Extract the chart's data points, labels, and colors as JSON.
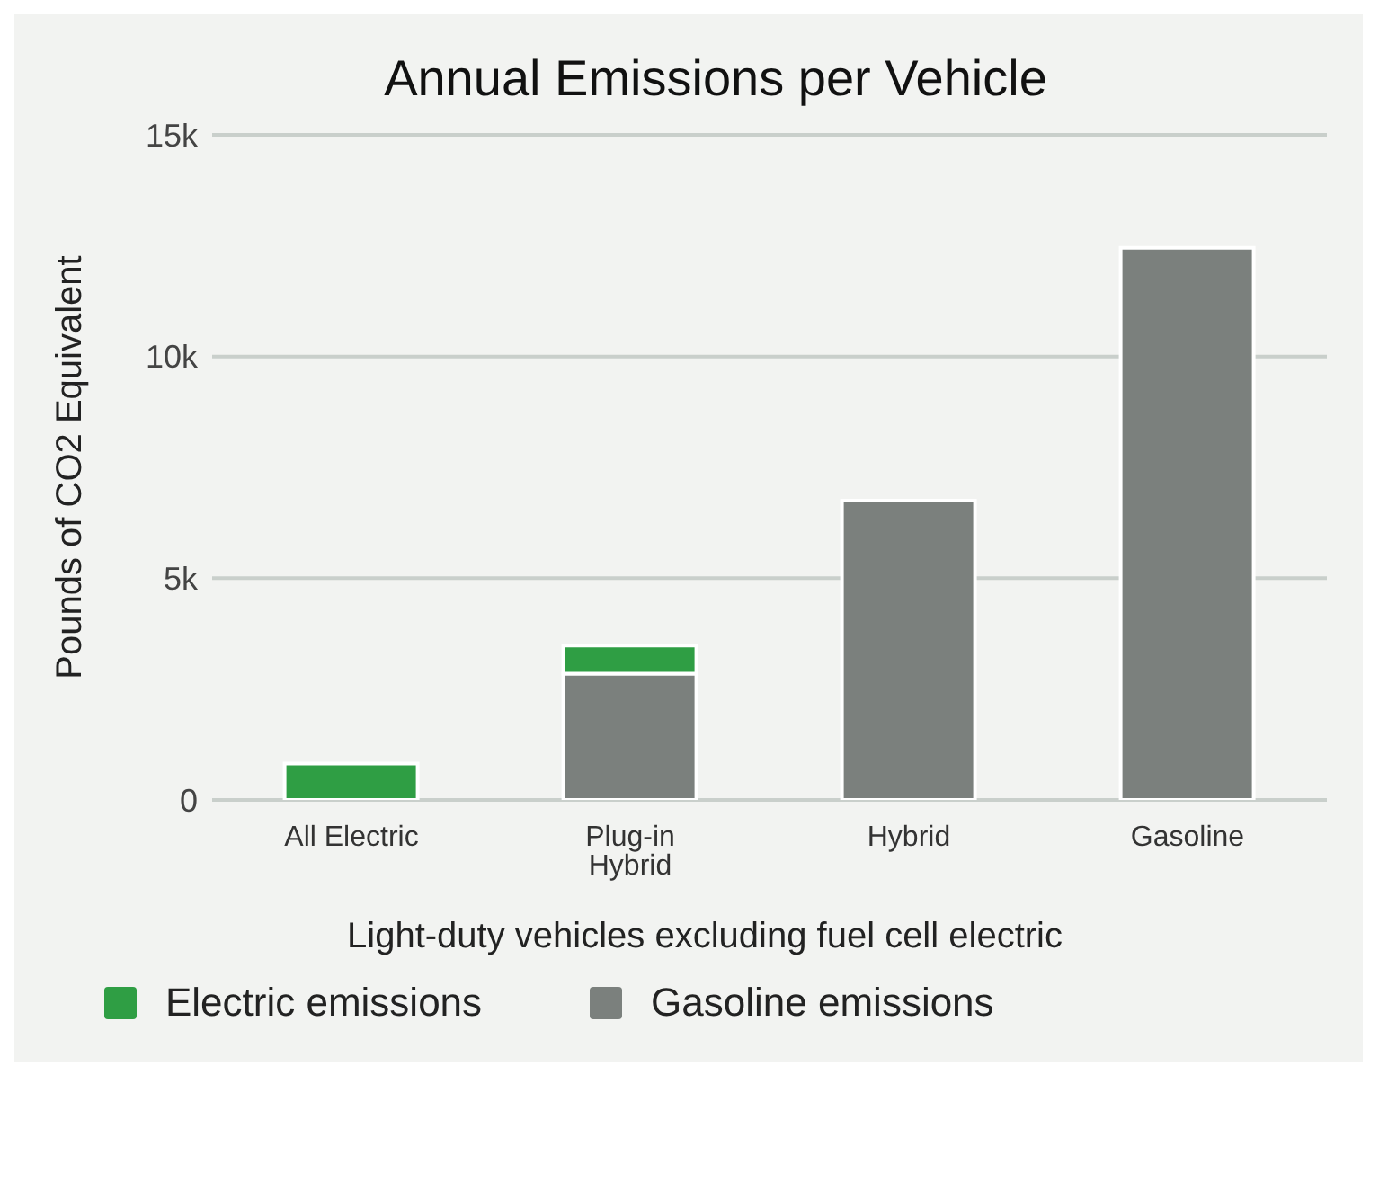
{
  "chart_data": {
    "type": "bar",
    "title": "Annual Emissions per Vehicle",
    "xlabel": "Light-duty vehicles excluding fuel cell electric",
    "ylabel": "Pounds of CO2 Equivalent",
    "categories": [
      "All Electric",
      "Plug-in Hybrid",
      "Hybrid",
      "Gasoline"
    ],
    "stacked": true,
    "series": [
      {
        "name": "Gasoline emissions",
        "color": "#7b807d",
        "values": [
          0,
          2850,
          6750,
          12450
        ]
      },
      {
        "name": "Electric emissions",
        "color": "#2f9e44",
        "values": [
          820,
          630,
          0,
          0
        ]
      }
    ],
    "ylim": [
      0,
      15000
    ],
    "yticks": [
      0,
      {
        "value": 5000,
        "label": "5k"
      },
      {
        "value": 10000,
        "label": "10k"
      },
      {
        "value": 15000,
        "label": "15k"
      }
    ],
    "grid": "y",
    "legend": "bottom"
  }
}
